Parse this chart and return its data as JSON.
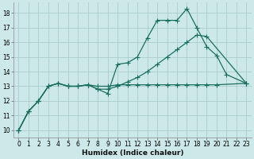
{
  "xlabel": "Humidex (Indice chaleur)",
  "background_color": "#cce8e8",
  "grid_color": "#aacccc",
  "line_color": "#1a7060",
  "xlim": [
    -0.5,
    23.5
  ],
  "ylim": [
    9.5,
    18.7
  ],
  "xticks": [
    0,
    1,
    2,
    3,
    4,
    5,
    6,
    7,
    8,
    9,
    10,
    11,
    12,
    13,
    14,
    15,
    16,
    17,
    18,
    19,
    20,
    21,
    22,
    23
  ],
  "yticks": [
    10,
    11,
    12,
    13,
    14,
    15,
    16,
    17,
    18
  ],
  "line1_x": [
    0,
    1,
    2,
    3,
    4,
    5,
    6,
    7,
    8,
    9,
    10,
    11,
    12,
    13,
    14,
    15,
    16,
    17,
    18,
    19,
    20,
    21,
    23
  ],
  "line1_y": [
    10.0,
    11.3,
    12.0,
    13.0,
    13.2,
    13.0,
    13.0,
    13.1,
    12.8,
    12.5,
    14.5,
    14.6,
    15.0,
    16.3,
    17.5,
    17.5,
    17.5,
    18.3,
    17.0,
    15.7,
    15.1,
    13.8,
    13.2
  ],
  "line2_x": [
    0,
    1,
    2,
    3,
    4,
    5,
    6,
    7,
    8,
    9,
    10,
    11,
    12,
    13,
    14,
    15,
    16,
    17,
    18,
    19,
    20,
    23
  ],
  "line2_y": [
    10.0,
    11.3,
    12.0,
    13.0,
    13.2,
    13.0,
    13.0,
    13.1,
    13.0,
    13.0,
    13.1,
    13.1,
    13.1,
    13.1,
    13.1,
    13.1,
    13.1,
    13.1,
    13.1,
    13.1,
    13.1,
    13.2
  ],
  "line3_x": [
    0,
    1,
    2,
    3,
    4,
    5,
    6,
    7,
    8,
    9,
    10,
    11,
    12,
    13,
    14,
    15,
    16,
    17,
    18,
    19,
    23
  ],
  "line3_y": [
    10.0,
    11.3,
    12.0,
    13.0,
    13.2,
    13.0,
    13.0,
    13.1,
    12.8,
    12.8,
    13.0,
    13.3,
    13.6,
    14.0,
    14.5,
    15.0,
    15.5,
    16.0,
    16.5,
    16.4,
    13.2
  ],
  "marker_size": 3,
  "line_width": 0.9,
  "tick_fontsize": 5.5,
  "xlabel_fontsize": 6.5
}
